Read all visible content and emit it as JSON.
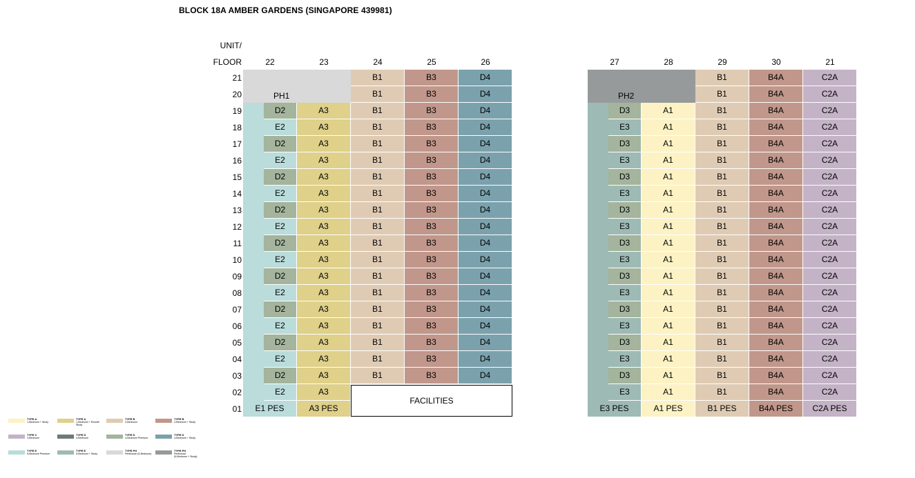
{
  "title": "BLOCK 18A AMBER GARDENS (SINGAPORE 439981)",
  "header": {
    "unit_label": "UNIT/",
    "floor_label": "FLOOR"
  },
  "colors": {
    "A1": "#fcf2c4",
    "A3": "#dfd08a",
    "B1": "#dfcbb4",
    "B3": "#c1978b",
    "B4A": "#c1978b",
    "C2A": "#c4b3c6",
    "D2": "#a4b49d",
    "D3": "#a4b49d",
    "D4": "#7ba1ad",
    "E1": "#badcdb",
    "E2": "#badcdb",
    "E3": "#9ebab4",
    "PH1": "#d9d9d9",
    "PH2": "#979a9b"
  },
  "floors": [
    "21",
    "20",
    "19",
    "18",
    "17",
    "16",
    "15",
    "14",
    "13",
    "12",
    "11",
    "10",
    "09",
    "08",
    "07",
    "06",
    "05",
    "04",
    "03",
    "02",
    "01"
  ],
  "stack_left": {
    "units": [
      "22",
      "23",
      "24",
      "25",
      "26"
    ],
    "penthouse": "PH1",
    "facilities": "FACILITIES",
    "rows": [
      [
        "",
        "",
        "B1",
        "B3",
        "D4"
      ],
      [
        "",
        "",
        "B1",
        "B3",
        "D4"
      ],
      [
        "D2",
        "A3",
        "B1",
        "B3",
        "D4"
      ],
      [
        "E2",
        "A3",
        "B1",
        "B3",
        "D4"
      ],
      [
        "D2",
        "A3",
        "B1",
        "B3",
        "D4"
      ],
      [
        "E2",
        "A3",
        "B1",
        "B3",
        "D4"
      ],
      [
        "D2",
        "A3",
        "B1",
        "B3",
        "D4"
      ],
      [
        "E2",
        "A3",
        "B1",
        "B3",
        "D4"
      ],
      [
        "D2",
        "A3",
        "B1",
        "B3",
        "D4"
      ],
      [
        "E2",
        "A3",
        "B1",
        "B3",
        "D4"
      ],
      [
        "D2",
        "A3",
        "B1",
        "B3",
        "D4"
      ],
      [
        "E2",
        "A3",
        "B1",
        "B3",
        "D4"
      ],
      [
        "D2",
        "A3",
        "B1",
        "B3",
        "D4"
      ],
      [
        "E2",
        "A3",
        "B1",
        "B3",
        "D4"
      ],
      [
        "D2",
        "A3",
        "B1",
        "B3",
        "D4"
      ],
      [
        "E2",
        "A3",
        "B1",
        "B3",
        "D4"
      ],
      [
        "D2",
        "A3",
        "B1",
        "B3",
        "D4"
      ],
      [
        "E2",
        "A3",
        "B1",
        "B3",
        "D4"
      ],
      [
        "D2",
        "A3",
        "B1",
        "B3",
        "D4"
      ],
      [
        "E2",
        "A3",
        "",
        "",
        ""
      ],
      [
        "E1 PES",
        "A3 PES",
        "",
        "",
        ""
      ]
    ]
  },
  "stack_right": {
    "units": [
      "27",
      "28",
      "29",
      "30",
      "21"
    ],
    "penthouse": "PH2",
    "rows": [
      [
        "",
        "",
        "B1",
        "B4A",
        "C2A"
      ],
      [
        "",
        "",
        "B1",
        "B4A",
        "C2A"
      ],
      [
        "D3",
        "A1",
        "B1",
        "B4A",
        "C2A"
      ],
      [
        "E3",
        "A1",
        "B1",
        "B4A",
        "C2A"
      ],
      [
        "D3",
        "A1",
        "B1",
        "B4A",
        "C2A"
      ],
      [
        "E3",
        "A1",
        "B1",
        "B4A",
        "C2A"
      ],
      [
        "D3",
        "A1",
        "B1",
        "B4A",
        "C2A"
      ],
      [
        "E3",
        "A1",
        "B1",
        "B4A",
        "C2A"
      ],
      [
        "D3",
        "A1",
        "B1",
        "B4A",
        "C2A"
      ],
      [
        "E3",
        "A1",
        "B1",
        "B4A",
        "C2A"
      ],
      [
        "D3",
        "A1",
        "B1",
        "B4A",
        "C2A"
      ],
      [
        "E3",
        "A1",
        "B1",
        "B4A",
        "C2A"
      ],
      [
        "D3",
        "A1",
        "B1",
        "B4A",
        "C2A"
      ],
      [
        "E3",
        "A1",
        "B1",
        "B4A",
        "C2A"
      ],
      [
        "D3",
        "A1",
        "B1",
        "B4A",
        "C2A"
      ],
      [
        "E3",
        "A1",
        "B1",
        "B4A",
        "C2A"
      ],
      [
        "D3",
        "A1",
        "B1",
        "B4A",
        "C2A"
      ],
      [
        "E3",
        "A1",
        "B1",
        "B4A",
        "C2A"
      ],
      [
        "D3",
        "A1",
        "B1",
        "B4A",
        "C2A"
      ],
      [
        "E3",
        "A1",
        "B1",
        "B4A",
        "C2A"
      ],
      [
        "E3 PES",
        "A1 PES",
        "B1 PES",
        "B4A PES",
        "C2A PES"
      ]
    ]
  },
  "legend": [
    {
      "name": "TYPE A",
      "desc": "1-Bedroom + Study",
      "color": "#fcf2c4"
    },
    {
      "name": "TYPE A",
      "desc": "1-Bedroom + Ensuite\nStudy",
      "color": "#dfd08a"
    },
    {
      "name": "TYPE B",
      "desc": "2-Bedroom",
      "color": "#dfcbb4"
    },
    {
      "name": "TYPE B",
      "desc": "2-Bedroom + Study",
      "color": "#c1978b"
    },
    {
      "name": "TYPE C",
      "desc": "3-Bedroom",
      "color": "#c4b3c6"
    },
    {
      "name": "TYPE D",
      "desc": "4-Bedroom",
      "color": "#6d7b72"
    },
    {
      "name": "TYPE D",
      "desc": "4-Bedroom Premium",
      "color": "#a4b49d"
    },
    {
      "name": "TYPE D",
      "desc": "4-Bedroom + Study",
      "color": "#7ba1ad"
    },
    {
      "name": "TYPE E",
      "desc": "5-Bedroom Premium",
      "color": "#badcdb"
    },
    {
      "name": "TYPE E",
      "desc": "5-Bedroom + Study",
      "color": "#9ebab4"
    },
    {
      "name": "TYPE PH",
      "desc": "Penthouse (5-Bedroom)",
      "color": "#d9d9d9"
    },
    {
      "name": "TYPE PH",
      "desc": "Penthouse\n(5-Bedroom + Study)",
      "color": "#979a9b"
    }
  ]
}
